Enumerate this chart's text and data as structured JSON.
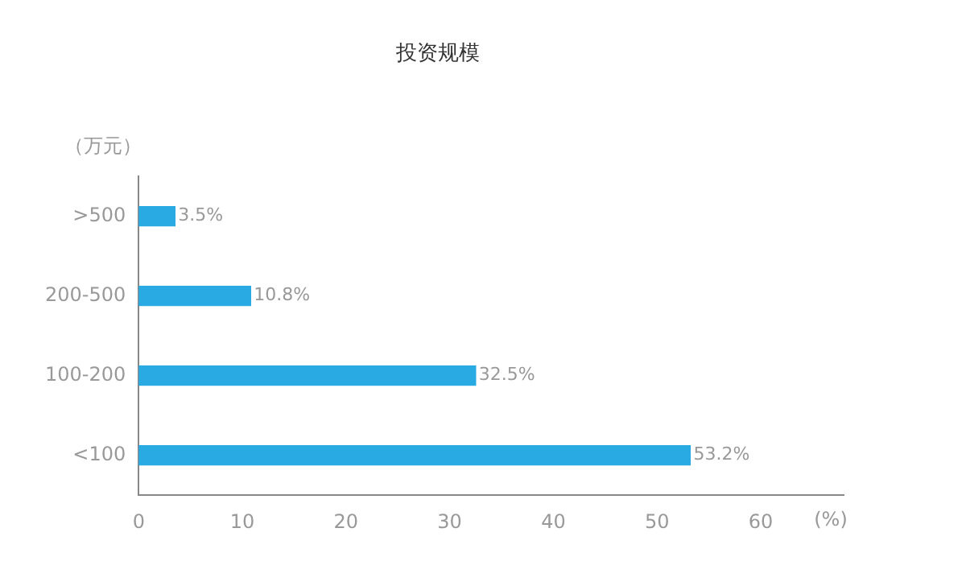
{
  "chart_data": {
    "type": "bar",
    "orientation": "horizontal",
    "title": "投资规模",
    "ylabel": "（万元）",
    "xlabel": "(%)",
    "categories": [
      ">500",
      "200-500",
      "100-200",
      "<100"
    ],
    "values": [
      3.5,
      10.8,
      32.5,
      53.2
    ],
    "value_labels": [
      "3.5%",
      "10.8%",
      "32.5%",
      "53.2%"
    ],
    "color": "#29aae2",
    "xlim": [
      0,
      68
    ],
    "xticks": [
      0,
      10,
      20,
      30,
      40,
      50,
      60
    ],
    "grid": false,
    "legend": false
  }
}
